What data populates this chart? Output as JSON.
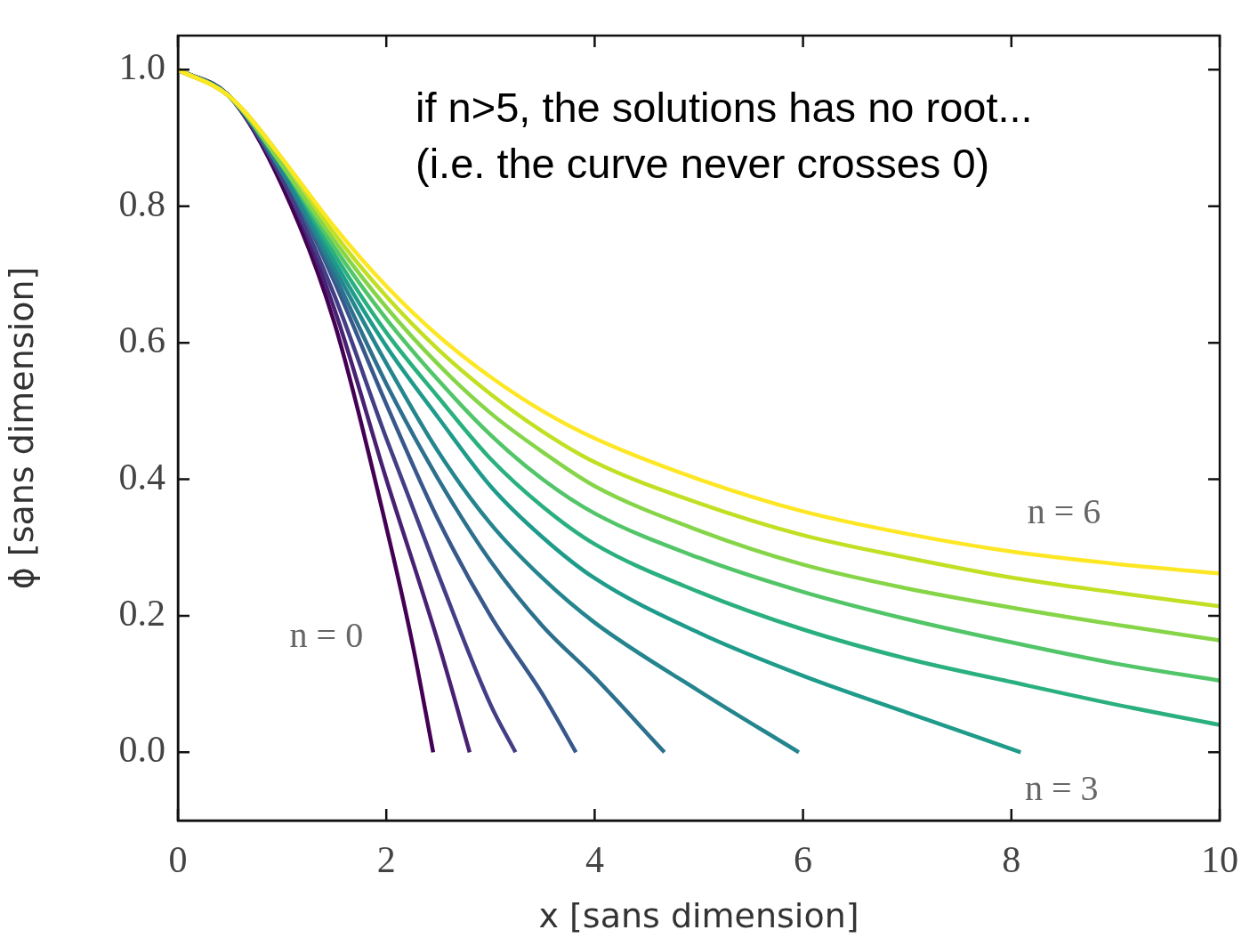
{
  "chart_data": {
    "type": "line",
    "xlabel": "x [sans dimension]",
    "ylabel": "ϕ [sans dimension]",
    "annotations": [
      "if n>5, the solutions has no root...\n(i.e. the curve never crosses 0)"
    ],
    "xlim": [
      0,
      10
    ],
    "xticks": [
      0,
      2,
      4,
      6,
      8,
      10
    ],
    "ylim": [
      -0.1,
      1.05
    ],
    "yticks": [
      {
        "value": 0,
        "label": "0.0"
      },
      0.2,
      0.4,
      0.6,
      0.8,
      {
        "value": 1,
        "label": "1.0"
      }
    ],
    "series": [
      {
        "name": "n = 0",
        "color": "#440154",
        "x": [
          0,
          0.5,
          1,
          1.5,
          2,
          2.25,
          2.45
        ],
        "values": [
          1,
          0.96,
          0.83,
          0.63,
          0.33,
          0.16,
          0
        ]
      },
      {
        "color": "#482173",
        "x": [
          0,
          0.5,
          1,
          1.5,
          2,
          2.5,
          2.8
        ],
        "values": [
          1,
          0.96,
          0.84,
          0.65,
          0.4,
          0.16,
          0
        ]
      },
      {
        "color": "#433e85",
        "x": [
          0,
          0.5,
          1,
          1.5,
          2,
          2.5,
          3,
          3.24
        ],
        "values": [
          1,
          0.96,
          0.84,
          0.67,
          0.46,
          0.26,
          0.07,
          0
        ]
      },
      {
        "color": "#38588c",
        "x": [
          0,
          0.5,
          1,
          1.5,
          2,
          2.5,
          3,
          3.5,
          3.82
        ],
        "values": [
          1,
          0.96,
          0.85,
          0.69,
          0.51,
          0.34,
          0.2,
          0.085,
          0
        ]
      },
      {
        "color": "#2d708e",
        "x": [
          0,
          0.5,
          1,
          1.5,
          2,
          2.5,
          3,
          3.5,
          4,
          4.67
        ],
        "values": [
          1,
          0.96,
          0.85,
          0.7,
          0.54,
          0.4,
          0.28,
          0.185,
          0.11,
          0
        ]
      },
      {
        "color": "#25858e",
        "x": [
          0,
          0.5,
          1,
          1.5,
          2,
          2.5,
          3,
          3.5,
          4,
          5,
          5.96
        ],
        "values": [
          1,
          0.96,
          0.85,
          0.71,
          0.57,
          0.44,
          0.335,
          0.255,
          0.19,
          0.09,
          0
        ]
      },
      {
        "name": "n = 3",
        "color": "#1e9b8a",
        "x": [
          0,
          0.5,
          1,
          1.5,
          2,
          2.5,
          3,
          3.5,
          4,
          5,
          6,
          7,
          8.09
        ],
        "values": [
          1,
          0.96,
          0.86,
          0.72,
          0.595,
          0.49,
          0.39,
          0.315,
          0.255,
          0.175,
          0.112,
          0.058,
          0
        ]
      },
      {
        "color": "#2ab07f",
        "x": [
          0,
          0.5,
          1,
          1.5,
          2,
          2.5,
          3,
          3.5,
          4,
          5,
          6,
          7,
          8,
          9,
          10
        ],
        "values": [
          1,
          0.96,
          0.86,
          0.73,
          0.615,
          0.52,
          0.43,
          0.36,
          0.305,
          0.235,
          0.18,
          0.137,
          0.103,
          0.07,
          0.04
        ]
      },
      {
        "color": "#52c569",
        "x": [
          0,
          0.5,
          1,
          1.5,
          2,
          2.5,
          3,
          3.5,
          4,
          5,
          6,
          7,
          8,
          9,
          10
        ],
        "values": [
          1,
          0.96,
          0.86,
          0.74,
          0.635,
          0.545,
          0.465,
          0.4,
          0.35,
          0.285,
          0.235,
          0.195,
          0.161,
          0.13,
          0.105
        ]
      },
      {
        "color": "#86d549",
        "x": [
          0,
          0.5,
          1,
          1.5,
          2,
          2.5,
          3,
          3.5,
          4,
          5,
          6,
          7,
          8,
          9,
          10
        ],
        "values": [
          1,
          0.96,
          0.86,
          0.75,
          0.652,
          0.568,
          0.497,
          0.44,
          0.39,
          0.325,
          0.275,
          0.24,
          0.212,
          0.187,
          0.164
        ]
      },
      {
        "color": "#c2df23",
        "x": [
          0,
          0.5,
          1,
          1.5,
          2,
          2.5,
          3,
          3.5,
          4,
          5,
          6,
          7,
          8,
          9,
          10
        ],
        "values": [
          1,
          0.96,
          0.87,
          0.76,
          0.668,
          0.59,
          0.525,
          0.47,
          0.425,
          0.365,
          0.318,
          0.285,
          0.256,
          0.234,
          0.214
        ]
      },
      {
        "name": "n = 6",
        "color": "#fde725",
        "x": [
          0,
          0.5,
          1,
          1.5,
          2,
          2.5,
          3,
          3.5,
          4,
          5,
          6,
          7,
          8,
          9,
          10
        ],
        "values": [
          1,
          0.96,
          0.87,
          0.77,
          0.683,
          0.61,
          0.55,
          0.5,
          0.46,
          0.4,
          0.353,
          0.32,
          0.294,
          0.276,
          0.262
        ]
      }
    ]
  }
}
